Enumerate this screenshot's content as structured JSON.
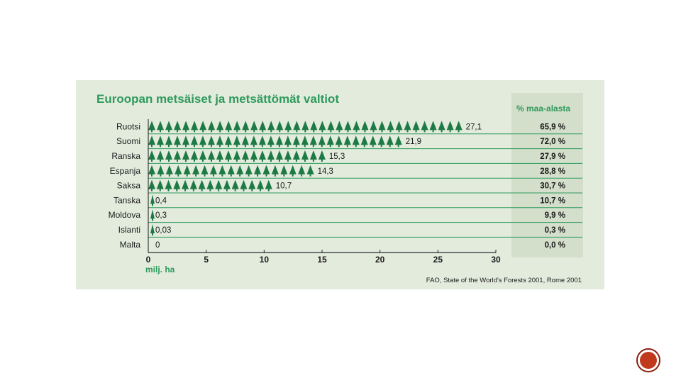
{
  "chart_data": {
    "type": "bar",
    "title": "Euroopan metsäiset ja metsättömät valtiot",
    "xlabel": "milj. ha",
    "ylabel": "",
    "xlim": [
      0,
      30
    ],
    "xticks": [
      "0",
      "5",
      "10",
      "15",
      "20",
      "25",
      "30"
    ],
    "right_column_header": "% maa-alasta",
    "categories": [
      "Ruotsi",
      "Suomi",
      "Ranska",
      "Espanja",
      "Saksa",
      "Tanska",
      "Moldova",
      "Islanti",
      "Malta"
    ],
    "values": [
      27.1,
      21.9,
      15.3,
      14.3,
      10.7,
      0.4,
      0.3,
      0.03,
      0
    ],
    "value_labels": [
      "27,1",
      "21,9",
      "15,3",
      "14,3",
      "10,7",
      "0,4",
      "0,3",
      "0,03",
      "0"
    ],
    "percent_of_land": [
      "65,9 %",
      "72,0 %",
      "27,9 %",
      "28,8 %",
      "30,7 %",
      "10,7 %",
      "9,9 %",
      "0,3 %",
      "0,0 %"
    ],
    "source": "FAO, State of the World's Forests 2001, Rome 2001"
  },
  "colors": {
    "panel": "#e3ebdd",
    "accent_green": "#2e9a5c",
    "tree_green": "#1e7a45",
    "text": "#1a1a1a",
    "logo": "#c0391d"
  }
}
